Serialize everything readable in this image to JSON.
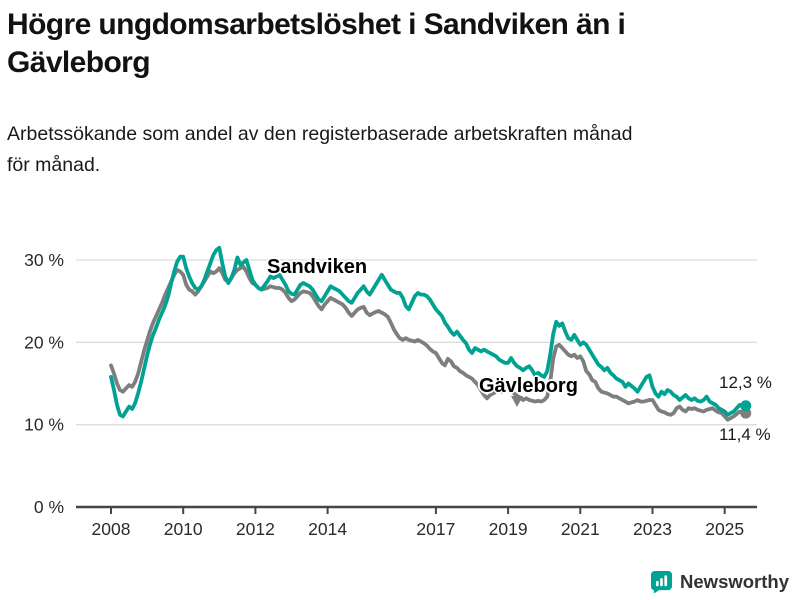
{
  "header": {
    "title_lines": [
      "Högre ungdomsarbetslöshet i Sandviken än i",
      "Gävleborg"
    ],
    "subtitle_lines": [
      "Arbetssökande som andel av den registerbaserade arbetskraften månad",
      "för månad."
    ]
  },
  "chart_data": {
    "type": "line",
    "title": "Högre ungdomsarbetslöshet i Sandviken än i Gävleborg",
    "subtitle": "Arbetssökande som andel av den registerbaserade arbetskraften månad för månad.",
    "xlabel": "",
    "ylabel": "",
    "x_unit": "months",
    "x_range": {
      "start": "2008-01",
      "end": "2025-08"
    },
    "xlim": [
      2007.9,
      2025.9
    ],
    "ylim": [
      0,
      33.5
    ],
    "grid": "horizontal",
    "legend_position": "inline-annotations",
    "colors": {
      "grid": "#dcdcdc",
      "axis": "#454545",
      "tick_text": "#2b2b2b"
    },
    "y_ticks": [
      {
        "value": 0,
        "label": "0 %"
      },
      {
        "value": 10,
        "label": "10 %"
      },
      {
        "value": 20,
        "label": "20 %"
      },
      {
        "value": 30,
        "label": "30 %"
      }
    ],
    "x_ticks": [
      {
        "value": 2008,
        "label": "2008"
      },
      {
        "value": 2010,
        "label": "2010"
      },
      {
        "value": 2012,
        "label": "2012"
      },
      {
        "value": 2014,
        "label": "2014"
      },
      {
        "value": 2017,
        "label": "2017"
      },
      {
        "value": 2019,
        "label": "2019"
      },
      {
        "value": 2021,
        "label": "2021"
      },
      {
        "value": 2023,
        "label": "2023"
      },
      {
        "value": 2025,
        "label": "2025"
      }
    ],
    "series": [
      {
        "name": "Sandviken",
        "color": "#00A292",
        "end_label": "12,3 %",
        "end_value": 12.3,
        "values": [
          15.8,
          14.2,
          12.4,
          11.2,
          11.0,
          11.6,
          12.2,
          11.9,
          12.6,
          13.8,
          15.2,
          16.8,
          18.4,
          19.8,
          20.9,
          21.8,
          22.8,
          23.6,
          24.5,
          25.6,
          27.2,
          28.6,
          29.8,
          30.4,
          30.4,
          29.0,
          28.0,
          27.2,
          26.6,
          26.4,
          26.8,
          27.6,
          28.6,
          29.6,
          30.6,
          31.2,
          31.5,
          29.6,
          28.0,
          27.2,
          27.8,
          28.8,
          30.3,
          29.4,
          29.7,
          30.0,
          28.8,
          27.6,
          27.0,
          26.6,
          26.4,
          26.9,
          27.4,
          28.0,
          27.8,
          28.0,
          28.2,
          27.6,
          27.0,
          26.2,
          25.9,
          25.8,
          26.4,
          27.0,
          27.2,
          27.0,
          26.8,
          26.4,
          25.8,
          25.2,
          25.0,
          25.6,
          26.2,
          26.8,
          26.6,
          26.4,
          26.2,
          25.8,
          25.4,
          25.0,
          24.8,
          25.4,
          26.0,
          26.4,
          26.8,
          26.2,
          25.8,
          26.4,
          27.0,
          27.6,
          28.2,
          27.6,
          27.0,
          26.4,
          26.2,
          26.0,
          26.0,
          25.4,
          24.4,
          24.0,
          24.8,
          25.6,
          26.0,
          25.8,
          25.8,
          25.6,
          25.2,
          24.6,
          24.0,
          23.6,
          23.2,
          22.4,
          21.9,
          21.3,
          20.9,
          21.3,
          20.8,
          20.3,
          19.9,
          19.1,
          18.7,
          19.3,
          19.1,
          18.9,
          19.1,
          18.9,
          18.7,
          18.5,
          18.3,
          17.9,
          17.7,
          17.5,
          17.5,
          18.1,
          17.5,
          17.1,
          16.9,
          16.6,
          16.9,
          17.1,
          16.6,
          16.0,
          16.3,
          16.0,
          15.8,
          16.5,
          18.5,
          21.0,
          22.5,
          22.0,
          22.3,
          21.3,
          20.5,
          20.3,
          20.9,
          20.3,
          19.7,
          20.0,
          19.7,
          19.1,
          18.5,
          17.9,
          17.3,
          17.0,
          16.6,
          16.9,
          16.3,
          16.0,
          15.6,
          15.4,
          15.2,
          14.6,
          15.0,
          14.7,
          14.4,
          14.0,
          14.6,
          15.2,
          15.8,
          16.0,
          14.6,
          13.8,
          13.4,
          14.0,
          13.7,
          14.2,
          14.0,
          13.6,
          13.4,
          13.0,
          13.3,
          13.6,
          13.2,
          13.0,
          13.2,
          12.9,
          12.8,
          13.0,
          13.4,
          12.8,
          12.6,
          12.4,
          12.0,
          11.8,
          11.6,
          11.2,
          11.4,
          11.6,
          12.0,
          12.4,
          12.2,
          12.3
        ]
      },
      {
        "name": "Gävleborg",
        "color": "#7E7E7E",
        "end_label": "11,4 %",
        "end_value": 11.4,
        "values": [
          17.2,
          16.2,
          15.0,
          14.2,
          14.0,
          14.4,
          14.8,
          14.6,
          15.2,
          16.2,
          17.6,
          19.0,
          20.2,
          21.4,
          22.4,
          23.2,
          24.0,
          24.8,
          25.8,
          26.6,
          27.4,
          28.2,
          28.8,
          28.6,
          28.2,
          27.0,
          26.4,
          26.2,
          25.8,
          26.2,
          26.8,
          27.4,
          28.0,
          28.6,
          28.4,
          28.6,
          29.0,
          28.4,
          27.6,
          27.4,
          27.8,
          28.4,
          28.8,
          29.0,
          29.2,
          28.6,
          27.8,
          27.2,
          27.0,
          26.6,
          26.4,
          26.5,
          26.6,
          26.8,
          26.7,
          26.6,
          26.6,
          26.4,
          26.0,
          25.4,
          25.0,
          25.2,
          25.6,
          26.0,
          26.2,
          26.1,
          26.0,
          25.6,
          25.0,
          24.4,
          24.0,
          24.6,
          25.0,
          25.4,
          25.2,
          25.0,
          24.8,
          24.6,
          24.2,
          23.6,
          23.2,
          23.6,
          24.0,
          24.2,
          24.3,
          23.6,
          23.3,
          23.5,
          23.7,
          23.8,
          23.6,
          23.4,
          23.1,
          22.4,
          21.6,
          21.0,
          20.5,
          20.3,
          20.5,
          20.3,
          20.2,
          20.1,
          20.3,
          20.1,
          19.9,
          19.6,
          19.2,
          18.9,
          18.7,
          18.1,
          17.5,
          17.2,
          18.0,
          17.7,
          17.1,
          16.9,
          16.5,
          16.3,
          16.0,
          15.8,
          15.6,
          15.2,
          14.8,
          14.2,
          13.6,
          13.2,
          13.6,
          13.8,
          14.0,
          14.2,
          14.0,
          14.2,
          14.2,
          14.0,
          13.8,
          13.5,
          13.3,
          13.0,
          13.2,
          13.0,
          12.9,
          12.8,
          12.9,
          12.8,
          13.0,
          13.4,
          15.2,
          18.0,
          19.5,
          19.7,
          19.3,
          18.9,
          18.5,
          18.3,
          18.5,
          18.1,
          18.3,
          17.7,
          16.5,
          16.1,
          15.4,
          15.2,
          14.4,
          14.0,
          13.9,
          13.8,
          13.6,
          13.4,
          13.4,
          13.2,
          13.0,
          12.8,
          12.6,
          12.7,
          12.8,
          13.0,
          12.8,
          12.8,
          12.9,
          13.0,
          13.0,
          12.4,
          11.8,
          11.6,
          11.5,
          11.3,
          11.2,
          11.4,
          12.0,
          12.2,
          11.8,
          11.6,
          12.0,
          11.9,
          12.0,
          11.8,
          11.7,
          11.6,
          11.8,
          11.9,
          12.0,
          11.7,
          11.5,
          11.4,
          11.0,
          10.6,
          10.8,
          11.0,
          11.3,
          11.6,
          11.5,
          11.4
        ]
      }
    ]
  },
  "footer": {
    "brand": "Newsworthy"
  }
}
